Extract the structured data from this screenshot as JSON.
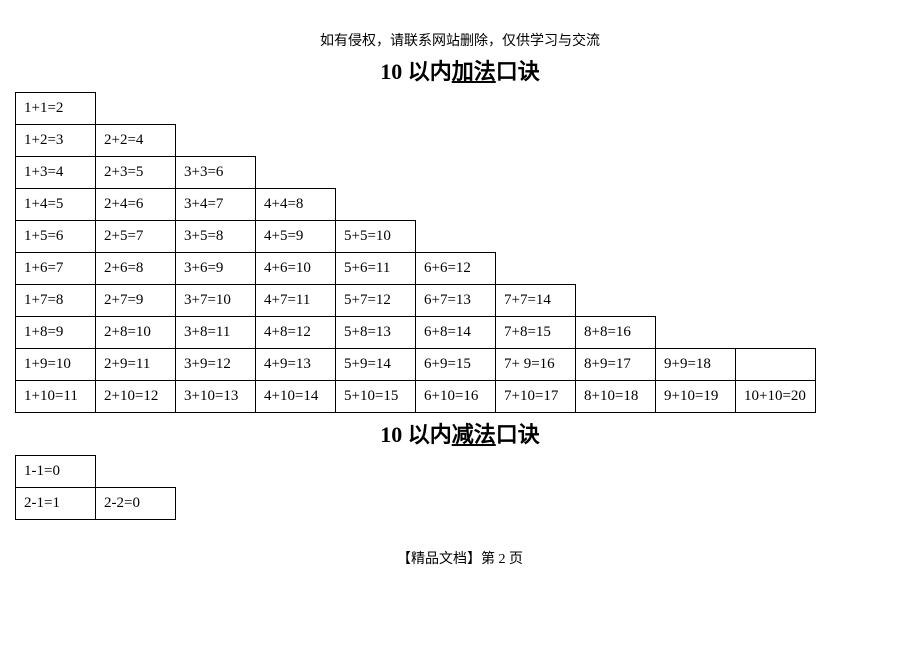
{
  "notice": "如有侵权，请联系网站删除，仅供学习与交流",
  "title1_prefix": "10 以内",
  "title1_underline": "加法",
  "title1_suffix": "口诀",
  "title2_prefix": "10 以内",
  "title2_underline": "减法",
  "title2_suffix": "口诀",
  "add_rows": [
    [
      "1+1=2"
    ],
    [
      "1+2=3",
      "2+2=4"
    ],
    [
      "1+3=4",
      "2+3=5",
      "3+3=6"
    ],
    [
      "1+4=5",
      "2+4=6",
      "3+4=7",
      "4+4=8"
    ],
    [
      "1+5=6",
      "2+5=7",
      "3+5=8",
      "4+5=9",
      "5+5=10"
    ],
    [
      "1+6=7",
      "2+6=8",
      "3+6=9",
      "4+6=10",
      "5+6=11",
      "6+6=12"
    ],
    [
      "1+7=8",
      "2+7=9",
      "3+7=10",
      "4+7=11",
      "5+7=12",
      "6+7=13",
      "7+7=14"
    ],
    [
      "1+8=9",
      "2+8=10",
      "3+8=11",
      "4+8=12",
      "5+8=13",
      "6+8=14",
      "7+8=15",
      "8+8=16"
    ],
    [
      "1+9=10",
      "2+9=11",
      "3+9=12",
      "4+9=13",
      "5+9=14",
      "6+9=15",
      "7+ 9=16",
      "8+9=17",
      "9+9=18",
      ""
    ],
    [
      "1+10=11",
      "2+10=12",
      "3+10=13",
      "4+10=14",
      "5+10=15",
      "6+10=16",
      "7+10=17",
      "8+10=18",
      "9+10=19",
      "10+10=20"
    ]
  ],
  "sub_rows": [
    [
      "1-1=0"
    ],
    [
      "2-1=1",
      "2-2=0"
    ]
  ],
  "footer": "【精品文档】第 2 页",
  "max_cols": 10,
  "colors": {
    "bg": "#ffffff",
    "text": "#000000",
    "border": "#000000"
  }
}
